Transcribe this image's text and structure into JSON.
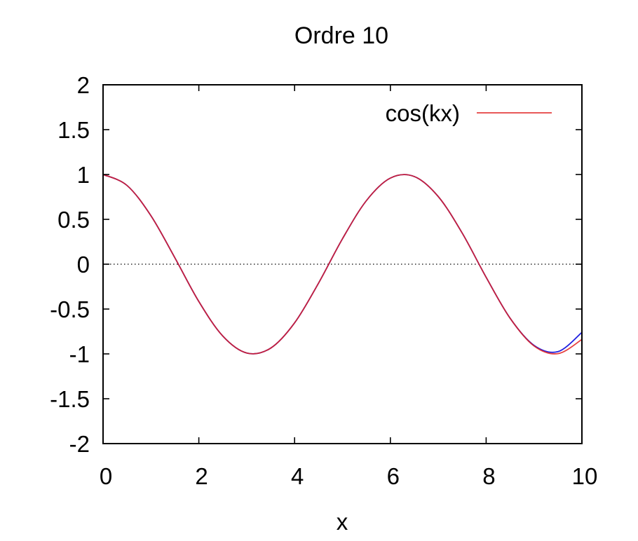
{
  "chart_data": {
    "type": "line",
    "title": "Ordre 10",
    "xlabel": "x",
    "ylabel": "",
    "xlim": [
      0,
      10
    ],
    "ylim": [
      -2,
      2
    ],
    "xticks": [
      "0",
      "2",
      "4",
      "6",
      "8",
      "10"
    ],
    "yticks": [
      "2",
      "1.5",
      "1",
      "0.5",
      "0",
      "-0.5",
      "-1",
      "-1.5",
      "-2"
    ],
    "grid": false,
    "zero_line": true,
    "legend_position": "top-right",
    "series": [
      {
        "name": "cos(kx)",
        "color": "#e02020",
        "x": [
          0,
          0.5,
          1,
          1.5,
          2,
          2.5,
          3,
          3.5,
          4,
          4.5,
          5,
          5.5,
          6,
          6.5,
          7,
          7.5,
          8,
          8.5,
          9,
          9.5,
          10
        ],
        "y": [
          1,
          0.878,
          0.54,
          0.071,
          -0.416,
          -0.801,
          -0.99,
          -0.936,
          -0.654,
          -0.211,
          0.284,
          0.709,
          0.96,
          0.977,
          0.754,
          0.347,
          -0.146,
          -0.602,
          -0.911,
          -0.997,
          -0.839
        ]
      },
      {
        "color": "#2020e0",
        "x": [
          0,
          0.5,
          1,
          1.5,
          2,
          2.5,
          3,
          3.5,
          4,
          4.5,
          5,
          5.5,
          6,
          6.5,
          7,
          7.5,
          8,
          8.5,
          9,
          9.5,
          10
        ],
        "y": [
          1,
          0.878,
          0.54,
          0.071,
          -0.416,
          -0.801,
          -0.99,
          -0.936,
          -0.654,
          -0.211,
          0.284,
          0.709,
          0.96,
          0.977,
          0.754,
          0.347,
          -0.146,
          -0.602,
          -0.905,
          -0.975,
          -0.76
        ]
      }
    ]
  }
}
